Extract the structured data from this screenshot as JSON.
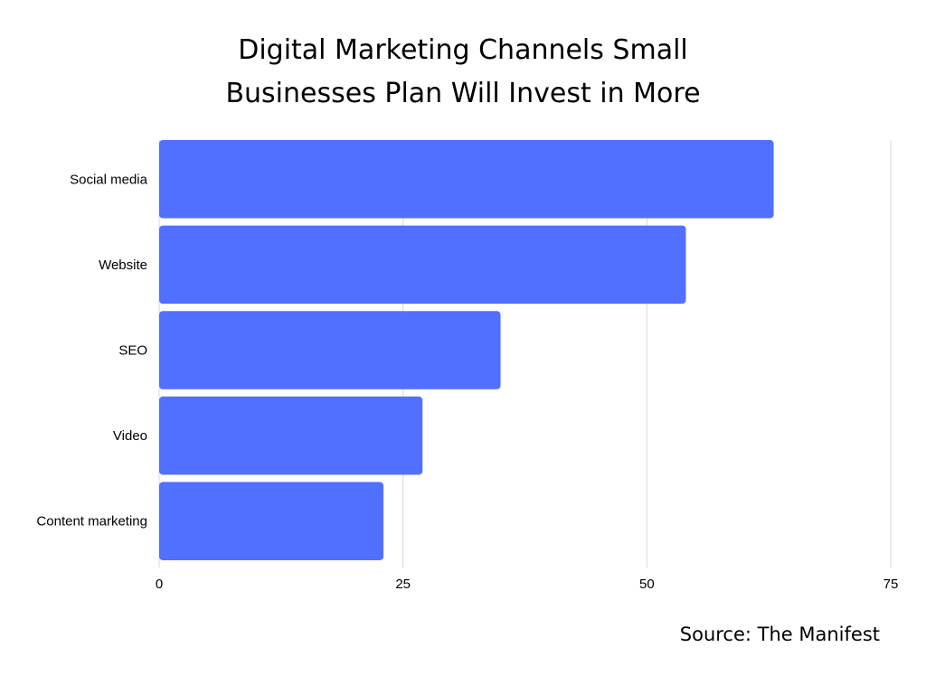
{
  "chart_data": {
    "type": "bar",
    "orientation": "horizontal",
    "title_lines": [
      "Digital Marketing Channels Small",
      "Businesses Plan Will Invest in More"
    ],
    "categories": [
      "Social media",
      "Website",
      "SEO",
      "Video",
      "Content marketing"
    ],
    "values": [
      63,
      54,
      35,
      27,
      23
    ],
    "xlim": [
      0,
      75
    ],
    "xticks": [
      "0",
      "25",
      "50",
      "75"
    ],
    "grid": true,
    "bar_color": "#5170FF",
    "gridline_color": "#D9D9D9"
  },
  "source_label": "Source: The Manifest"
}
